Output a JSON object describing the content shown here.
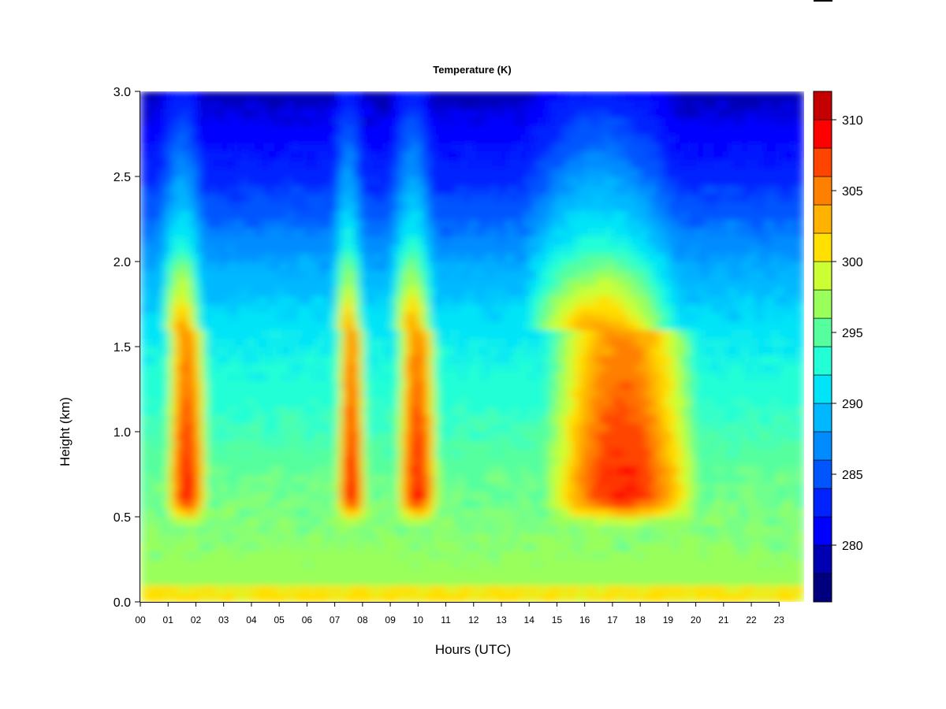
{
  "chart_data": {
    "type": "heatmap",
    "title": "Temperature (K)",
    "xlabel": "Hours (UTC)",
    "ylabel": "Height (km)",
    "x_tick_labels": [
      "00",
      "01",
      "02",
      "03",
      "04",
      "05",
      "06",
      "07",
      "08",
      "09",
      "10",
      "11",
      "12",
      "13",
      "14",
      "15",
      "16",
      "17",
      "18",
      "19",
      "20",
      "21",
      "22",
      "23"
    ],
    "x_ticks": [
      0,
      1,
      2,
      3,
      4,
      5,
      6,
      7,
      8,
      9,
      10,
      11,
      12,
      13,
      14,
      15,
      16,
      17,
      18,
      19,
      20,
      21,
      22,
      23
    ],
    "xlim": [
      0,
      23.9
    ],
    "y_tick_labels": [
      "0.0",
      "0.5",
      "1.0",
      "1.5",
      "2.0",
      "2.5",
      "3.0"
    ],
    "y_ticks": [
      0,
      0.5,
      1.0,
      1.5,
      2.0,
      2.5,
      3.0
    ],
    "ylim": [
      0,
      3.0
    ],
    "colorbar": {
      "label_values": [
        280,
        285,
        290,
        295,
        300,
        305,
        310
      ],
      "tick_labels": [
        "280",
        "285",
        "290",
        "295",
        "300",
        "305",
        "310"
      ],
      "range": [
        276,
        312
      ],
      "levels": [
        276,
        278,
        280,
        282,
        284,
        286,
        288,
        290,
        292,
        294,
        296,
        298,
        300,
        302,
        304,
        306,
        308,
        310,
        312
      ],
      "colors": [
        "#00007f",
        "#0000b2",
        "#0000ff",
        "#0022ff",
        "#0055ff",
        "#008cff",
        "#00b8ff",
        "#00e4f8",
        "#22ffd6",
        "#55ff9e",
        "#99ff5a",
        "#ccff33",
        "#ffe000",
        "#ffb200",
        "#ff7f00",
        "#ff4400",
        "#ff0000",
        "#c40000",
        "#7f0000"
      ]
    },
    "warm_plumes": [
      {
        "start_hour": 1.05,
        "end_hour": 2.3
      },
      {
        "start_hour": 7.2,
        "end_hour": 8.0
      },
      {
        "start_hour": 9.35,
        "end_hour": 10.6
      },
      {
        "start_hour": 14.7,
        "end_hour": 20.0
      }
    ],
    "grid": false,
    "legend": "colorbar-right"
  }
}
